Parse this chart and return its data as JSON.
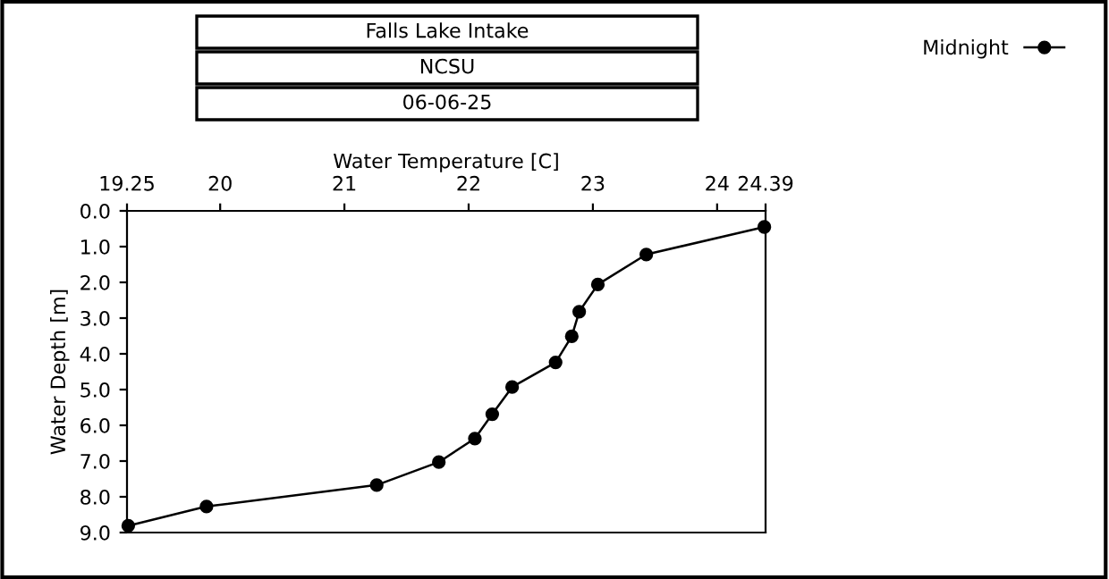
{
  "chart_data": {
    "type": "line",
    "title": "Falls Lake Intake",
    "subtitle": "NCSU",
    "annotations": [
      "06-06-25"
    ],
    "xlabel": "Water Temperature [C]",
    "ylabel": "Water Depth [m]",
    "series": [
      {
        "name": "Midnight",
        "color": "#000000",
        "x": [
          24.38,
          23.43,
          23.04,
          22.89,
          22.83,
          22.7,
          22.35,
          22.19,
          22.05,
          21.76,
          21.26,
          19.89,
          19.26
        ],
        "values": [
          0.45,
          1.22,
          2.06,
          2.82,
          3.51,
          4.24,
          4.93,
          5.69,
          6.37,
          7.03,
          7.67,
          8.27,
          8.81
        ]
      }
    ],
    "xlim": [
      19.25,
      24.39
    ],
    "xticks": [
      19.25,
      20,
      21,
      22,
      23,
      24,
      24.39
    ],
    "ylim": [
      9,
      0
    ],
    "yticks": [
      {
        "value": 0,
        "label": "0.0"
      },
      {
        "value": 1,
        "label": "1.0"
      },
      {
        "value": 2,
        "label": "2.0"
      },
      {
        "value": 3,
        "label": "3.0"
      },
      {
        "value": 4,
        "label": "4.0"
      },
      {
        "value": 5,
        "label": "5.0"
      },
      {
        "value": 6,
        "label": "6.0"
      },
      {
        "value": 7,
        "label": "7.0"
      },
      {
        "value": 8,
        "label": "8.0"
      },
      {
        "value": 9,
        "label": "9.0"
      }
    ],
    "marker": "circle",
    "line_style": "solid",
    "grid": false,
    "legend": "top right"
  }
}
